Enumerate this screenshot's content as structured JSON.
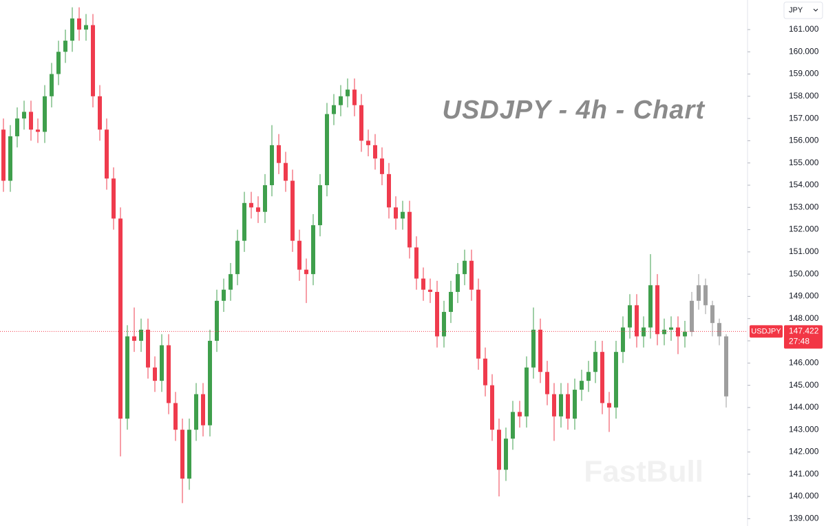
{
  "chart_data": {
    "type": "candlestick",
    "title": "USDJPY - 4h - Chart",
    "watermark": "FastBull",
    "currency": "JPY",
    "ylim": [
      138.67,
      162.33
    ],
    "yticks": [
      {
        "value": 139,
        "label": "139.000"
      },
      {
        "value": 140,
        "label": "140.000"
      },
      {
        "value": 141,
        "label": "141.000"
      },
      {
        "value": 142,
        "label": "142.000"
      },
      {
        "value": 143,
        "label": "143.000"
      },
      {
        "value": 144,
        "label": "144.000"
      },
      {
        "value": 145,
        "label": "145.000"
      },
      {
        "value": 146,
        "label": "146.000"
      },
      {
        "value": 147,
        "label": "147.000"
      },
      {
        "value": 148,
        "label": "148.000"
      },
      {
        "value": 149,
        "label": "149.000"
      },
      {
        "value": 150,
        "label": "150.000"
      },
      {
        "value": 151,
        "label": "151.000"
      },
      {
        "value": 152,
        "label": "152.000"
      },
      {
        "value": 153,
        "label": "153.000"
      },
      {
        "value": 154,
        "label": "154.000"
      },
      {
        "value": 155,
        "label": "155.000"
      },
      {
        "value": 156,
        "label": "156.000"
      },
      {
        "value": 157,
        "label": "157.000"
      },
      {
        "value": 158,
        "label": "158.000"
      },
      {
        "value": 159,
        "label": "159.000"
      },
      {
        "value": 160,
        "label": "160.000"
      },
      {
        "value": 161,
        "label": "161.000"
      }
    ],
    "last_price": 147.422,
    "countdown": "27:48",
    "last_price_color": "#f23645",
    "series": [
      {
        "name": "USDJPY",
        "up_color": "#3f9f4c",
        "down_color": "#ef3b4d",
        "open": [
          156.5,
          154.2,
          156.2,
          157,
          157.3,
          156.5,
          156.4,
          158,
          159,
          160,
          160.5,
          161.5,
          161,
          161.2,
          158,
          156.5,
          154.3,
          152.5,
          143.5,
          147.2,
          147,
          147.5,
          145.8,
          145.2,
          146.8,
          144.2,
          143,
          140.8,
          143,
          144.6,
          143.2,
          147,
          148.8,
          149.3,
          150,
          151.5,
          153.2,
          153,
          152.8,
          154,
          155.8,
          155,
          154.2,
          151.5,
          150.2,
          150,
          152.2,
          154,
          157.2,
          157.6,
          158,
          158.3,
          157.6,
          156,
          155.8,
          155.2,
          154.5,
          153,
          152.5,
          152.8,
          151.2,
          149.8,
          149.3,
          149.2,
          147.2,
          148.3,
          149.2,
          150,
          150.6,
          149.3,
          146.2,
          145,
          143,
          141.2,
          142.6,
          143.8,
          143.6,
          145.8,
          147.5,
          145.6,
          144.6,
          143.6,
          144.6,
          143.5,
          144.8,
          145.2,
          145.6,
          146.5,
          144.2,
          144,
          146.5,
          147.6,
          148.6,
          147.2,
          147.6,
          149.5,
          147.3,
          147.5,
          147.6,
          147.2
        ],
        "high": [
          157,
          156.7,
          157.5,
          157.8,
          157.8,
          157,
          158.5,
          159.5,
          160.5,
          161,
          162,
          162,
          161.7,
          161.7,
          158.5,
          157,
          154.8,
          153,
          147.7,
          148.5,
          148,
          148,
          146.3,
          147.3,
          147.3,
          144.7,
          143.5,
          143.5,
          145.1,
          145.1,
          147.5,
          149.3,
          149.8,
          150.5,
          152,
          153.7,
          153.7,
          153.5,
          154.5,
          156.7,
          156.3,
          155.5,
          154.7,
          152,
          150.7,
          152.7,
          154.5,
          157.7,
          158.1,
          158.5,
          158.8,
          158.8,
          158.1,
          156.5,
          156.3,
          155.7,
          155,
          153.5,
          153.3,
          153.3,
          151.7,
          150.3,
          149.8,
          149.7,
          148.8,
          149.7,
          150.5,
          151.1,
          151.1,
          149.8,
          146.7,
          145.5,
          143.5,
          143.1,
          144.3,
          144.3,
          146.3,
          148.5,
          148,
          146.1,
          145.1,
          145.1,
          145.1,
          145.3,
          145.7,
          146.1,
          147,
          147,
          144.7,
          147,
          148.1,
          149.1,
          149.1,
          148.1,
          150.9,
          150,
          148,
          148.1,
          148.1,
          147.9
        ],
        "low": [
          153.7,
          153.7,
          155.7,
          156.5,
          156,
          155.9,
          155.9,
          157.5,
          158.5,
          159.5,
          160,
          160.5,
          160.5,
          157.5,
          156,
          153.8,
          152,
          141.8,
          143,
          146.5,
          146.5,
          145.3,
          144.7,
          144.7,
          143.7,
          142.5,
          139.7,
          140.3,
          142.5,
          142.7,
          142.7,
          146.5,
          148.3,
          148.8,
          149.5,
          151,
          152.5,
          152.3,
          152.3,
          153.5,
          154.5,
          153.7,
          151,
          149.7,
          148.7,
          149.5,
          151.7,
          153.5,
          156.7,
          157.1,
          157.5,
          157.1,
          155.5,
          155.3,
          154.7,
          154,
          152.5,
          152,
          152,
          150.7,
          149.3,
          148.8,
          148.7,
          146.7,
          146.7,
          147.8,
          148.7,
          149.5,
          148.8,
          145.7,
          144.5,
          142.5,
          140,
          140.7,
          142.1,
          143.1,
          143.1,
          145.3,
          145.1,
          144.1,
          142.5,
          143.1,
          143,
          143,
          144.3,
          144.7,
          145.1,
          143.7,
          142.9,
          143.5,
          146,
          147.1,
          146.7,
          146.7,
          147.1,
          146.8,
          146.8,
          147,
          146.4,
          146.7
        ],
        "close": [
          154.2,
          156.2,
          157,
          157.3,
          156.5,
          156.4,
          158,
          159,
          160,
          160.5,
          161.5,
          161,
          161.2,
          158,
          156.5,
          154.3,
          152.5,
          143.5,
          147.2,
          147,
          147.5,
          145.8,
          145.2,
          146.8,
          144.2,
          143,
          140.8,
          143,
          144.6,
          143.2,
          147,
          148.8,
          149.3,
          150,
          151.5,
          153.2,
          153,
          152.8,
          154,
          155.8,
          155,
          154.2,
          151.5,
          150.2,
          150,
          152.2,
          154,
          157.2,
          157.6,
          158,
          158.3,
          157.6,
          156,
          155.8,
          155.2,
          154.5,
          153,
          152.5,
          152.8,
          151.2,
          149.8,
          149.3,
          149.2,
          147.2,
          148.3,
          149.2,
          150,
          150.6,
          149.3,
          146.2,
          145,
          143,
          141.2,
          142.6,
          143.8,
          143.6,
          145.8,
          147.5,
          145.6,
          144.6,
          143.6,
          144.6,
          143.5,
          144.8,
          145.2,
          145.6,
          146.5,
          144.2,
          144,
          146.5,
          147.6,
          148.6,
          147.2,
          147.6,
          149.5,
          147.3,
          147.5,
          147.6,
          147.2,
          147.4
        ]
      },
      {
        "up_color": "#9e9e9e",
        "down_color": "#9e9e9e",
        "open": [
          147.4,
          148.8,
          149.5,
          148.6,
          147.8,
          147.2
        ],
        "high": [
          149.2,
          150,
          149.8,
          148.8,
          148,
          147.3
        ],
        "low": [
          147.2,
          148.4,
          148.2,
          147.2,
          146.8,
          144
        ],
        "close": [
          148.8,
          149.5,
          148.6,
          147.8,
          147.2,
          144.5
        ]
      }
    ]
  }
}
